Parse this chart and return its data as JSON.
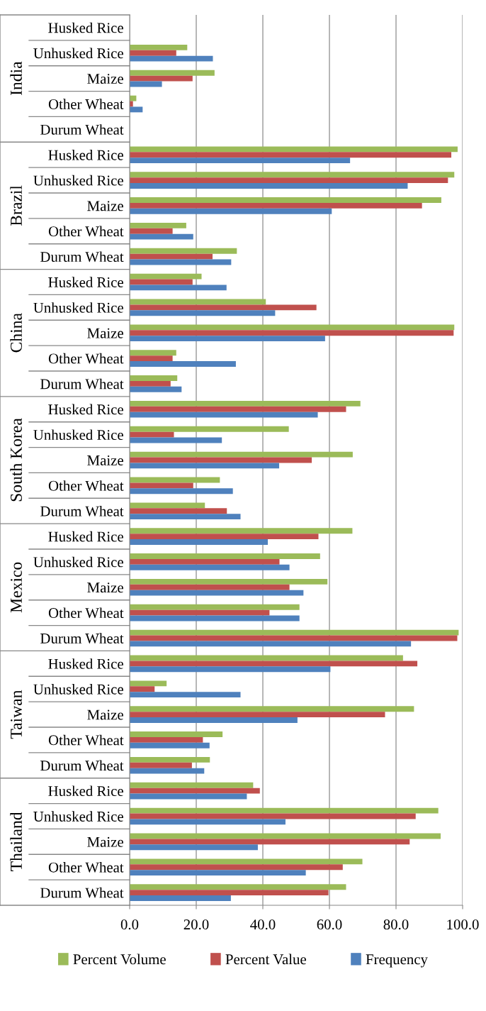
{
  "chart_data": {
    "type": "bar",
    "orientation": "horizontal",
    "categories": [
      "Husked Rice",
      "Unhusked Rice",
      "Maize",
      "Other Wheat",
      "Durum Wheat",
      "Husked Rice",
      "Unhusked Rice",
      "Maize",
      "Other Wheat",
      "Durum Wheat",
      "Husked Rice",
      "Unhusked Rice",
      "Maize",
      "Other Wheat",
      "Durum Wheat",
      "Husked Rice",
      "Unhusked Rice",
      "Maize",
      "Other Wheat",
      "Durum Wheat",
      "Husked Rice",
      "Unhusked Rice",
      "Maize",
      "Other Wheat",
      "Durum Wheat",
      "Husked Rice",
      "Unhusked Rice",
      "Maize",
      "Other Wheat",
      "Durum Wheat",
      "Husked Rice",
      "Unhusked Rice",
      "Maize",
      "Other Wheat",
      "Durum Wheat"
    ],
    "annotations": [
      "India",
      "Brazil",
      "China",
      "South Korea",
      "Mexico",
      "Taiwan",
      "Thailand"
    ],
    "series": [
      {
        "name": "Percent Volume",
        "color": "#9bbb59",
        "values": [
          null,
          17.3,
          25.5,
          2.0,
          null,
          98.5,
          97.5,
          93.6,
          17.0,
          32.2,
          21.6,
          40.9,
          97.5,
          14.0,
          14.3,
          69.3,
          47.8,
          67.0,
          27.1,
          22.6,
          66.9,
          57.2,
          59.4,
          51.0,
          98.8,
          82.1,
          11.1,
          85.4,
          27.9,
          24.1,
          37.1,
          92.7,
          93.4,
          69.9,
          65.0
        ]
      },
      {
        "name": "Percent Value",
        "color": "#c0504d",
        "values": [
          null,
          14.0,
          18.9,
          1.0,
          null,
          96.6,
          95.6,
          87.8,
          12.9,
          24.9,
          18.9,
          56.1,
          97.3,
          12.9,
          12.3,
          65.0,
          13.3,
          54.7,
          19.1,
          29.2,
          56.7,
          45.0,
          48.0,
          42.0,
          98.4,
          86.4,
          7.5,
          76.7,
          22.0,
          18.7,
          39.1,
          85.9,
          84.1,
          64.0,
          59.7
        ]
      },
      {
        "name": "Frequency",
        "color": "#4f81bd",
        "values": [
          null,
          25.0,
          9.7,
          3.9,
          null,
          66.2,
          83.5,
          60.7,
          19.1,
          30.5,
          29.1,
          43.7,
          58.7,
          31.9,
          15.6,
          56.5,
          27.7,
          44.9,
          31.0,
          33.3,
          41.5,
          48.0,
          52.2,
          51.0,
          84.5,
          60.3,
          33.3,
          50.4,
          24.0,
          22.4,
          35.2,
          46.8,
          38.5,
          52.9,
          30.4
        ]
      }
    ],
    "xlim": [
      0,
      100
    ],
    "xticks": [
      {
        "value": 0,
        "label": "0.0"
      },
      {
        "value": 20,
        "label": "20.0"
      },
      {
        "value": 40,
        "label": "40.0"
      },
      {
        "value": 60,
        "label": "60.0"
      },
      {
        "value": 80,
        "label": "80.0"
      },
      {
        "value": 100,
        "label": "100.0"
      }
    ],
    "grid": "x",
    "legend": "bottom"
  }
}
